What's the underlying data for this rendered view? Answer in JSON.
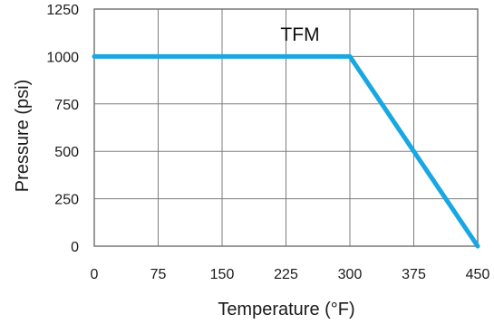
{
  "chart_data": {
    "type": "line",
    "title": "",
    "xlabel": "Temperature (°F)",
    "ylabel": "Pressure (psi)",
    "xlim": [
      0,
      450
    ],
    "ylim": [
      0,
      1250
    ],
    "xticks": [
      0,
      75,
      150,
      225,
      300,
      375,
      450
    ],
    "yticks": [
      0,
      250,
      500,
      750,
      1000,
      1250
    ],
    "xtick_labels": [
      "0",
      "75",
      "150",
      "225",
      "300",
      "375",
      "450"
    ],
    "ytick_labels": [
      "0",
      "250",
      "500",
      "750",
      "1000",
      "1250"
    ],
    "grid": true,
    "legend": "none",
    "annotation": "TFM",
    "series": [
      {
        "name": "TFM",
        "color": "#18a7e3",
        "x": [
          0,
          300,
          450
        ],
        "y": [
          1000,
          1000,
          0
        ]
      }
    ],
    "colors": {
      "grid": "#7d7d7d",
      "axis": "#6f6f6f",
      "text": "#1a1a1a"
    }
  }
}
